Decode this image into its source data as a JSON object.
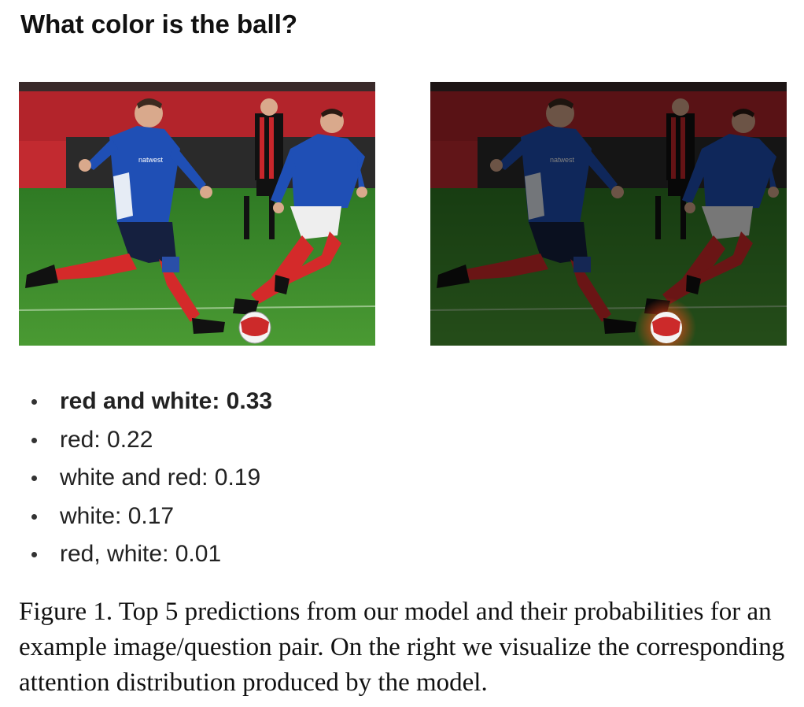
{
  "question": "What color is the ball?",
  "images": {
    "left_jersey_text": "natwest",
    "right_jersey_text": "natwest",
    "colors": {
      "jersey": "#1f4fb5",
      "socks": "#d42a2a",
      "grass": "#3f8a2a",
      "stand": "#b3242b"
    }
  },
  "predictions": [
    {
      "text": "red and white: 0.33"
    },
    {
      "text": "red: 0.22"
    },
    {
      "text": "white and red: 0.19"
    },
    {
      "text": "white: 0.17"
    },
    {
      "text": "red, white: 0.01"
    }
  ],
  "caption": "Figure 1. Top 5 predictions from our model and their probabilities for an example image/question pair. On the right we visualize the corresponding attention distribution produced by the model."
}
